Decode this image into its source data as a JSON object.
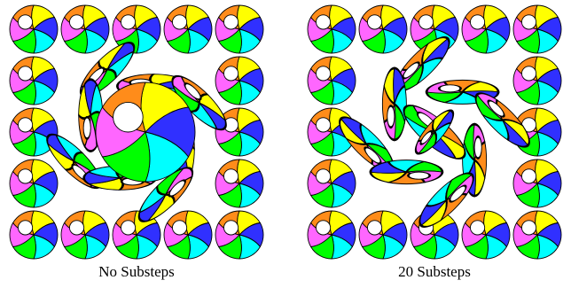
{
  "captions": [
    "No Substeps",
    "20 Substeps"
  ]
}
